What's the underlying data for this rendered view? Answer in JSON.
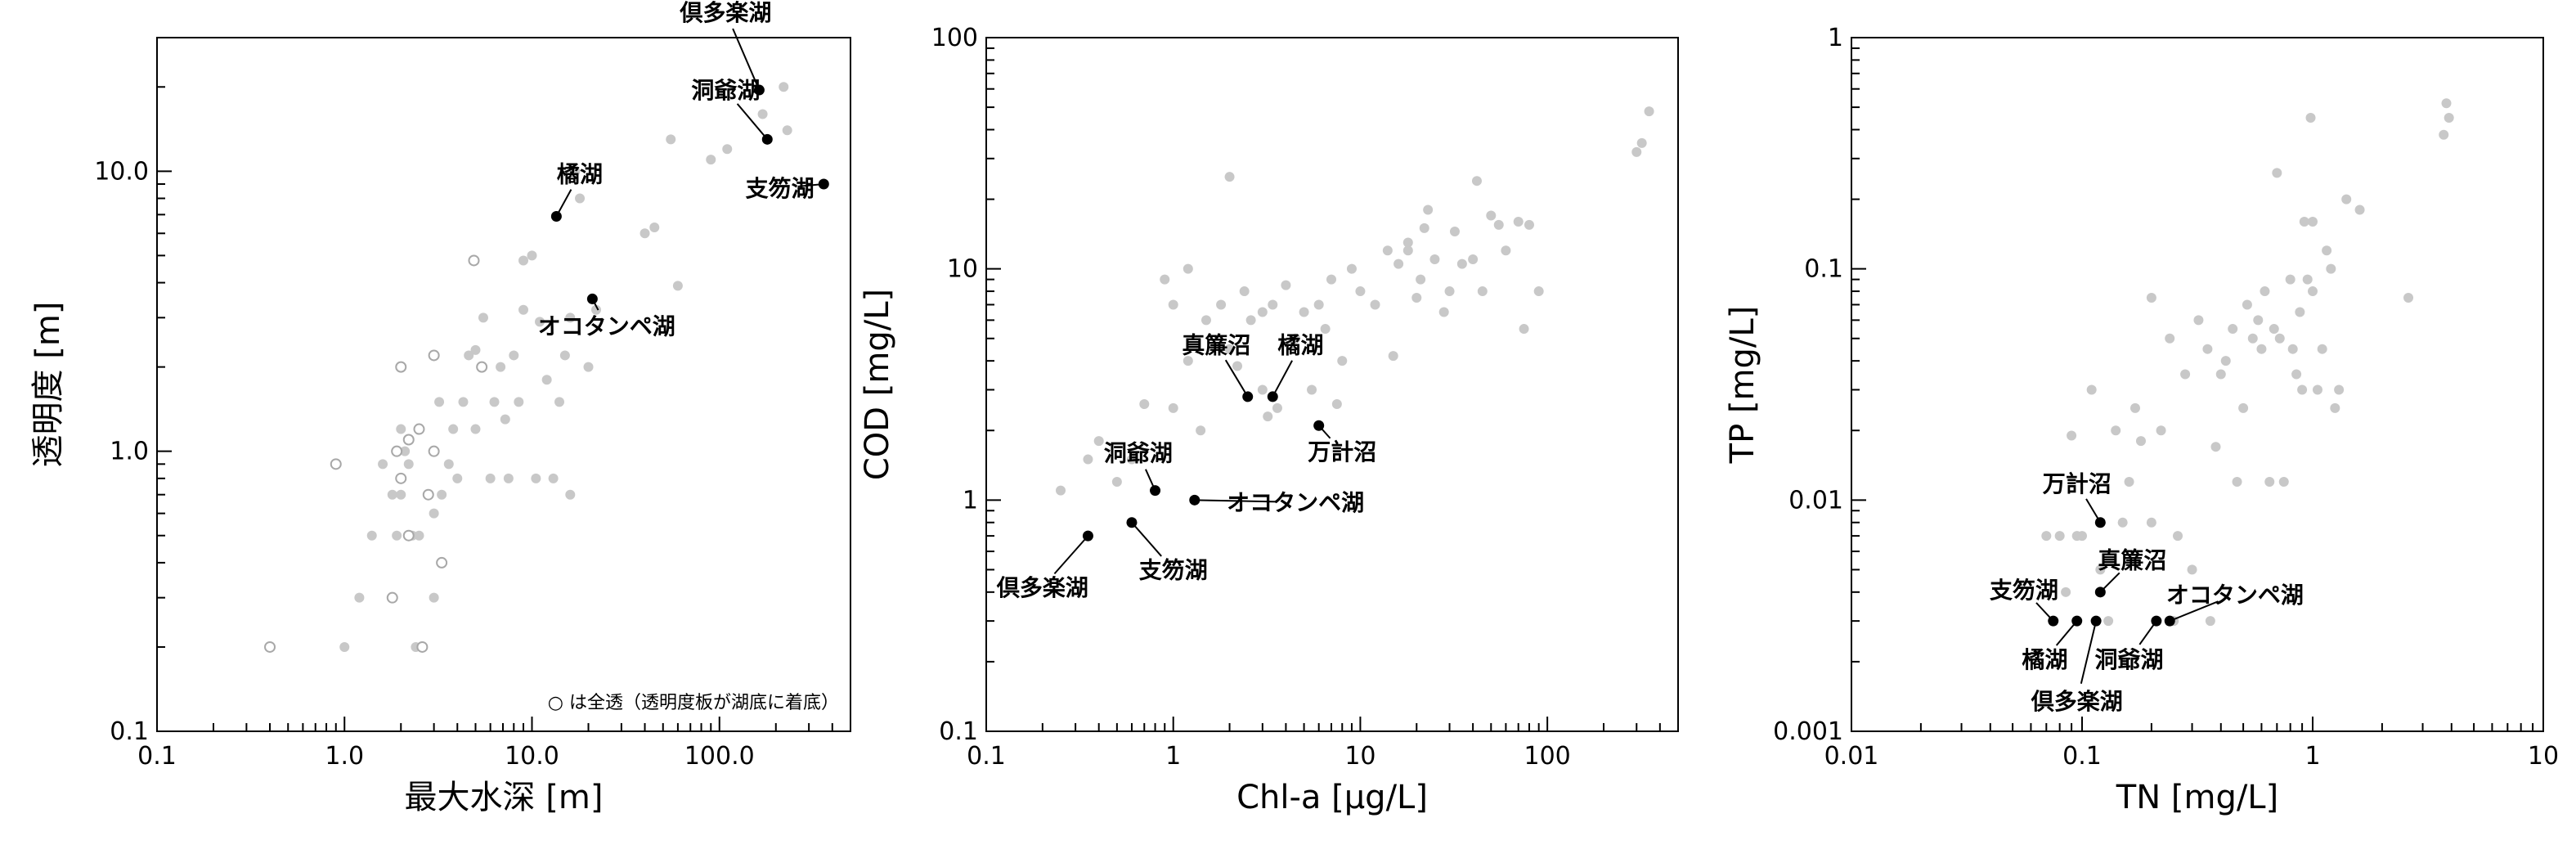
{
  "colors": {
    "background": "#ffffff",
    "point_grey": "#c8c8c8",
    "highlight": "#000000"
  },
  "chart_data": [
    {
      "type": "scatter",
      "xlabel": "最大水深 [m]",
      "ylabel": "透明度 [m]",
      "xscale": "log",
      "yscale": "log",
      "xlim": [
        0.1,
        500
      ],
      "ylim": [
        0.1,
        30
      ],
      "xticks": [
        {
          "v": 0.1,
          "label": "0.1"
        },
        {
          "v": 1,
          "label": "1.0"
        },
        {
          "v": 10,
          "label": "10.0"
        },
        {
          "v": 100,
          "label": "100.0"
        }
      ],
      "yticks": [
        {
          "v": 0.1,
          "label": "0.1"
        },
        {
          "v": 1,
          "label": "1.0"
        },
        {
          "v": 10,
          "label": "10.0"
        }
      ],
      "note": "○ は全透（透明度板が湖底に着底）",
      "grey_points": [
        [
          1,
          0.2
        ],
        [
          1.2,
          0.3
        ],
        [
          1.4,
          0.5
        ],
        [
          1.6,
          0.9
        ],
        [
          1.8,
          0.7
        ],
        [
          1.9,
          0.5
        ],
        [
          2,
          0.7
        ],
        [
          2,
          1.2
        ],
        [
          2.1,
          1.0
        ],
        [
          2.2,
          0.9
        ],
        [
          2.3,
          0.5
        ],
        [
          2.4,
          0.2
        ],
        [
          2.5,
          0.5
        ],
        [
          2.8,
          0.7
        ],
        [
          3,
          0.3
        ],
        [
          3,
          0.6
        ],
        [
          3.2,
          1.5
        ],
        [
          3.3,
          0.7
        ],
        [
          3.6,
          0.9
        ],
        [
          3.8,
          1.2
        ],
        [
          4,
          0.8
        ],
        [
          4.3,
          1.5
        ],
        [
          4.6,
          2.2
        ],
        [
          5,
          1.2
        ],
        [
          5,
          2.3
        ],
        [
          5.5,
          3.0
        ],
        [
          6,
          0.8
        ],
        [
          6.3,
          1.5
        ],
        [
          6.8,
          2.0
        ],
        [
          7.2,
          1.3
        ],
        [
          7.5,
          0.8
        ],
        [
          8,
          2.2
        ],
        [
          8.5,
          1.5
        ],
        [
          9,
          3.2
        ],
        [
          9,
          4.8
        ],
        [
          10,
          5.0
        ],
        [
          10.5,
          0.8
        ],
        [
          11,
          2.9
        ],
        [
          12,
          1.8
        ],
        [
          13,
          0.8
        ],
        [
          14,
          1.5
        ],
        [
          15,
          2.2
        ],
        [
          16,
          0.7
        ],
        [
          16,
          3.0
        ],
        [
          17,
          10.0
        ],
        [
          18,
          8.0
        ],
        [
          20,
          2.0
        ],
        [
          22,
          3.2
        ],
        [
          40,
          6.0
        ],
        [
          45,
          6.3
        ],
        [
          55,
          13.0
        ],
        [
          60,
          3.9
        ],
        [
          90,
          11.0
        ],
        [
          110,
          12.0
        ],
        [
          170,
          16.0
        ],
        [
          220,
          20.0
        ],
        [
          230,
          14.0
        ]
      ],
      "open_points": [
        [
          0.4,
          0.2
        ],
        [
          0.9,
          0.9
        ],
        [
          1.8,
          0.3
        ],
        [
          1.9,
          1.0
        ],
        [
          2,
          0.8
        ],
        [
          2,
          2.0
        ],
        [
          2.2,
          0.5
        ],
        [
          2.6,
          0.2
        ],
        [
          2.8,
          0.7
        ],
        [
          3,
          2.2
        ],
        [
          3,
          1.0
        ],
        [
          3.3,
          0.4
        ],
        [
          4.9,
          4.8
        ],
        [
          5.4,
          2.0
        ],
        [
          2.5,
          1.2
        ],
        [
          2.2,
          1.1
        ]
      ],
      "highlights": [
        {
          "x": 163,
          "y": 19.5,
          "label": "倶多楽湖",
          "lx": 108,
          "ly": 37.0
        },
        {
          "x": 180,
          "y": 13.0,
          "label": "洞爺湖",
          "lx": 108,
          "ly": 19.5
        },
        {
          "x": 360,
          "y": 9.0,
          "label": "支笏湖",
          "lx": 210,
          "ly": 8.7
        },
        {
          "x": 13.5,
          "y": 6.9,
          "label": "橘湖",
          "lx": 18,
          "ly": 9.8
        },
        {
          "x": 21,
          "y": 3.5,
          "label": "オコタンペ湖",
          "lx": 25,
          "ly": 2.8
        }
      ]
    },
    {
      "type": "scatter",
      "xlabel": "Chl-a [μg/L]",
      "ylabel": "COD [mg/L]",
      "xscale": "log",
      "yscale": "log",
      "xlim": [
        0.1,
        500
      ],
      "ylim": [
        0.1,
        100
      ],
      "xticks": [
        {
          "v": 0.1,
          "label": "0.1"
        },
        {
          "v": 1,
          "label": "1"
        },
        {
          "v": 10,
          "label": "10"
        },
        {
          "v": 100,
          "label": "100"
        }
      ],
      "yticks": [
        {
          "v": 0.1,
          "label": "0.1"
        },
        {
          "v": 1,
          "label": "1"
        },
        {
          "v": 10,
          "label": "10"
        },
        {
          "v": 100,
          "label": "100"
        }
      ],
      "grey_points": [
        [
          0.25,
          1.1
        ],
        [
          0.35,
          1.5
        ],
        [
          0.4,
          1.8
        ],
        [
          0.5,
          1.2
        ],
        [
          0.6,
          1.5
        ],
        [
          0.7,
          2.6
        ],
        [
          0.9,
          9.0
        ],
        [
          1,
          7.0
        ],
        [
          1,
          2.5
        ],
        [
          1.2,
          4.0
        ],
        [
          1.2,
          10.0
        ],
        [
          1.4,
          2.0
        ],
        [
          1.5,
          6.0
        ],
        [
          1.8,
          7.0
        ],
        [
          2,
          25.0
        ],
        [
          2,
          4.5
        ],
        [
          2.2,
          3.8
        ],
        [
          2.4,
          8.0
        ],
        [
          2.6,
          6.0
        ],
        [
          3,
          3.0
        ],
        [
          3,
          6.5
        ],
        [
          3.2,
          2.3
        ],
        [
          3.4,
          7.0
        ],
        [
          3.6,
          2.5
        ],
        [
          4,
          8.5
        ],
        [
          4.5,
          5.0
        ],
        [
          5,
          6.5
        ],
        [
          5.5,
          3.0
        ],
        [
          6,
          7.0
        ],
        [
          6.5,
          5.5
        ],
        [
          7,
          9.0
        ],
        [
          7.5,
          2.6
        ],
        [
          8,
          4.0
        ],
        [
          9,
          10.0
        ],
        [
          10,
          8.0
        ],
        [
          12,
          7.0
        ],
        [
          14,
          12.0
        ],
        [
          15,
          4.2
        ],
        [
          16,
          10.5
        ],
        [
          18,
          12.0
        ],
        [
          18,
          13.0
        ],
        [
          20,
          7.5
        ],
        [
          21,
          9.0
        ],
        [
          22,
          15.0
        ],
        [
          23,
          18.0
        ],
        [
          25,
          11.0
        ],
        [
          28,
          6.5
        ],
        [
          30,
          8.0
        ],
        [
          32,
          14.5
        ],
        [
          35,
          10.5
        ],
        [
          40,
          11.0
        ],
        [
          42,
          24.0
        ],
        [
          45,
          8.0
        ],
        [
          50,
          17.0
        ],
        [
          55,
          15.5
        ],
        [
          60,
          12.0
        ],
        [
          70,
          16.0
        ],
        [
          75,
          5.5
        ],
        [
          80,
          15.5
        ],
        [
          90,
          8.0
        ],
        [
          300,
          32.0
        ],
        [
          320,
          35.0
        ],
        [
          350,
          48.0
        ]
      ],
      "highlights": [
        {
          "x": 0.35,
          "y": 0.7,
          "label": "倶多楽湖",
          "lx": 0.2,
          "ly": 0.42
        },
        {
          "x": 0.6,
          "y": 0.8,
          "label": "支笏湖",
          "lx": 1.0,
          "ly": 0.5
        },
        {
          "x": 0.8,
          "y": 1.1,
          "label": "洞爺湖",
          "lx": 0.65,
          "ly": 1.6
        },
        {
          "x": 1.3,
          "y": 1.0,
          "label": "オコタンペ湖",
          "lx": 4.5,
          "ly": 0.98
        },
        {
          "x": 2.5,
          "y": 2.8,
          "label": "真簾沼",
          "lx": 1.7,
          "ly": 4.7
        },
        {
          "x": 3.4,
          "y": 2.8,
          "label": "橘湖",
          "lx": 4.8,
          "ly": 4.7
        },
        {
          "x": 6.0,
          "y": 2.1,
          "label": "万計沼",
          "lx": 8.0,
          "ly": 1.62
        }
      ]
    },
    {
      "type": "scatter",
      "xlabel": "TN [mg/L]",
      "ylabel": "TP [mg/L]",
      "xscale": "log",
      "yscale": "log",
      "xlim": [
        0.01,
        10
      ],
      "ylim": [
        0.001,
        1
      ],
      "xticks": [
        {
          "v": 0.01,
          "label": "0.01"
        },
        {
          "v": 0.1,
          "label": "0.1"
        },
        {
          "v": 1,
          "label": "1"
        },
        {
          "v": 10,
          "label": "10"
        }
      ],
      "yticks": [
        {
          "v": 0.001,
          "label": "0.001"
        },
        {
          "v": 0.01,
          "label": "0.01"
        },
        {
          "v": 0.1,
          "label": "0.1"
        },
        {
          "v": 1,
          "label": "1"
        }
      ],
      "grey_points": [
        [
          0.07,
          0.007
        ],
        [
          0.08,
          0.007
        ],
        [
          0.085,
          0.004
        ],
        [
          0.09,
          0.019
        ],
        [
          0.095,
          0.007
        ],
        [
          0.1,
          0.007
        ],
        [
          0.11,
          0.03
        ],
        [
          0.12,
          0.005
        ],
        [
          0.13,
          0.003
        ],
        [
          0.14,
          0.02
        ],
        [
          0.15,
          0.008
        ],
        [
          0.16,
          0.012
        ],
        [
          0.17,
          0.025
        ],
        [
          0.18,
          0.018
        ],
        [
          0.2,
          0.075
        ],
        [
          0.2,
          0.008
        ],
        [
          0.22,
          0.02
        ],
        [
          0.24,
          0.05
        ],
        [
          0.25,
          0.003
        ],
        [
          0.26,
          0.007
        ],
        [
          0.28,
          0.035
        ],
        [
          0.3,
          0.005
        ],
        [
          0.32,
          0.06
        ],
        [
          0.35,
          0.045
        ],
        [
          0.36,
          0.003
        ],
        [
          0.38,
          0.017
        ],
        [
          0.4,
          0.035
        ],
        [
          0.42,
          0.04
        ],
        [
          0.45,
          0.055
        ],
        [
          0.47,
          0.012
        ],
        [
          0.5,
          0.025
        ],
        [
          0.52,
          0.07
        ],
        [
          0.55,
          0.05
        ],
        [
          0.58,
          0.06
        ],
        [
          0.6,
          0.045
        ],
        [
          0.62,
          0.08
        ],
        [
          0.65,
          0.012
        ],
        [
          0.68,
          0.055
        ],
        [
          0.7,
          0.26
        ],
        [
          0.72,
          0.05
        ],
        [
          0.75,
          0.012
        ],
        [
          0.8,
          0.09
        ],
        [
          0.82,
          0.045
        ],
        [
          0.85,
          0.035
        ],
        [
          0.88,
          0.065
        ],
        [
          0.9,
          0.03
        ],
        [
          0.92,
          0.16
        ],
        [
          0.95,
          0.09
        ],
        [
          0.98,
          0.45
        ],
        [
          1.0,
          0.08
        ],
        [
          1.0,
          0.16
        ],
        [
          1.05,
          0.03
        ],
        [
          1.1,
          0.045
        ],
        [
          1.15,
          0.12
        ],
        [
          1.2,
          0.1
        ],
        [
          1.25,
          0.025
        ],
        [
          1.3,
          0.03
        ],
        [
          1.4,
          0.2
        ],
        [
          1.6,
          0.18
        ],
        [
          2.6,
          0.075
        ],
        [
          3.7,
          0.38
        ],
        [
          3.8,
          0.52
        ],
        [
          3.9,
          0.45
        ]
      ],
      "highlights": [
        {
          "x": 0.12,
          "y": 0.008,
          "label": "万計沼",
          "lx": 0.095,
          "ly": 0.0118
        },
        {
          "x": 0.12,
          "y": 0.004,
          "label": "真簾沼",
          "lx": 0.165,
          "ly": 0.0055
        },
        {
          "x": 0.075,
          "y": 0.003,
          "label": "支笏湖",
          "lx": 0.056,
          "ly": 0.0041
        },
        {
          "x": 0.095,
          "y": 0.003,
          "label": "橘湖",
          "lx": 0.069,
          "ly": 0.00205
        },
        {
          "x": 0.115,
          "y": 0.003,
          "label": "倶多楽湖",
          "lx": 0.095,
          "ly": 0.00135
        },
        {
          "x": 0.21,
          "y": 0.003,
          "label": "洞爺湖",
          "lx": 0.16,
          "ly": 0.00205
        },
        {
          "x": 0.24,
          "y": 0.003,
          "label": "オコタンペ湖",
          "lx": 0.46,
          "ly": 0.0039
        }
      ]
    }
  ]
}
